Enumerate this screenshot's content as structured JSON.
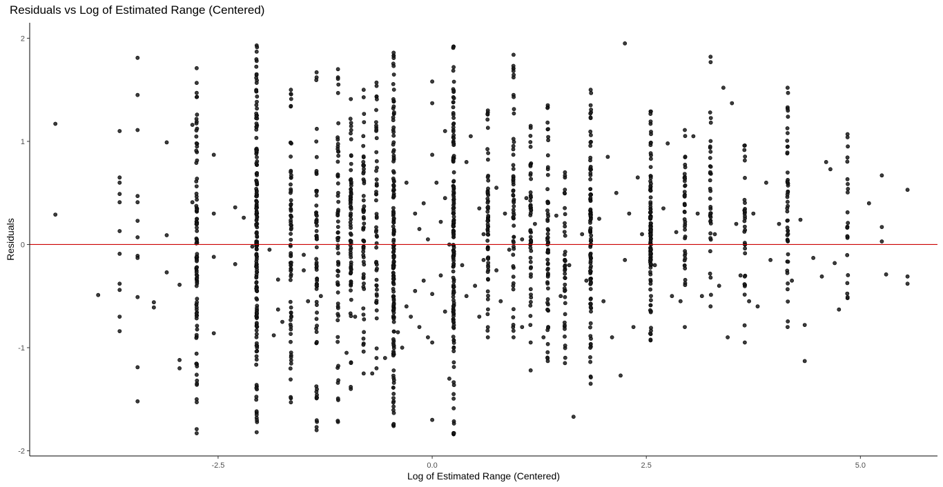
{
  "chart_data": {
    "type": "scatter",
    "title": "Residuals vs Log of Estimated Range (Centered)",
    "xlabel": "Log of Estimated Range (Centered)",
    "ylabel": "Residuals",
    "xlim": [
      -4.7,
      5.9
    ],
    "ylim": [
      -2.05,
      2.15
    ],
    "x_ticks": [
      -2.5,
      0.0,
      2.5,
      5.0
    ],
    "x_tick_labels": [
      "-2.5",
      "0.0",
      "2.5",
      "5.0"
    ],
    "y_ticks": [
      -2,
      -1,
      0,
      1,
      2
    ],
    "y_tick_labels": [
      "-2",
      "-1",
      "0",
      "1",
      "2"
    ],
    "grid": false,
    "legend": "none",
    "reference_line": {
      "y": 0,
      "color": "#cc0000"
    },
    "point_color": "#1a1a1a",
    "series": [
      {
        "points": [
          [
            -4.4,
            1.17
          ],
          [
            -4.4,
            0.29
          ],
          [
            -3.9,
            -0.49
          ],
          [
            -3.65,
            1.1
          ],
          [
            -3.65,
            0.65
          ],
          [
            -3.65,
            0.6
          ],
          [
            -3.65,
            0.49
          ],
          [
            -3.65,
            0.41
          ],
          [
            -3.65,
            0.13
          ],
          [
            -3.65,
            -0.09
          ],
          [
            -3.65,
            -0.38
          ],
          [
            -3.65,
            -0.44
          ],
          [
            -3.65,
            -0.7
          ],
          [
            -3.65,
            -0.84
          ],
          [
            -3.44,
            1.81
          ],
          [
            -3.44,
            1.45
          ],
          [
            -3.44,
            1.11
          ],
          [
            -3.44,
            0.47
          ],
          [
            -3.44,
            0.41
          ],
          [
            -3.44,
            0.23
          ],
          [
            -3.44,
            0.07
          ],
          [
            -3.44,
            -0.11
          ],
          [
            -3.44,
            -0.13
          ],
          [
            -3.44,
            -0.51
          ],
          [
            -3.44,
            -1.19
          ],
          [
            -3.44,
            -1.52
          ],
          [
            -3.25,
            -0.56
          ],
          [
            -3.25,
            -0.61
          ],
          [
            -3.1,
            0.99
          ],
          [
            -3.1,
            0.09
          ],
          [
            -3.1,
            -0.27
          ],
          [
            -2.95,
            -0.39
          ],
          [
            -2.95,
            -1.12
          ],
          [
            -2.95,
            -1.2
          ],
          [
            -2.8,
            1.16
          ],
          [
            -2.8,
            0.41
          ],
          [
            -2.75,
            -0.34
          ],
          [
            -2.75,
            -0.63
          ],
          [
            -2.55,
            0.87
          ],
          [
            -2.55,
            0.3
          ],
          [
            -2.55,
            -0.12
          ],
          [
            -2.55,
            -0.86
          ],
          [
            -2.3,
            0.36
          ],
          [
            -2.3,
            -0.19
          ],
          [
            -2.2,
            0.26
          ],
          [
            -2.1,
            -0.02
          ],
          [
            -1.9,
            -0.05
          ],
          [
            -1.85,
            -0.88
          ],
          [
            -1.8,
            -0.34
          ],
          [
            -1.8,
            -0.63
          ],
          [
            -1.75,
            -0.75
          ],
          [
            -1.5,
            -0.1
          ],
          [
            -1.5,
            -0.25
          ],
          [
            -1.45,
            -0.55
          ],
          [
            -1.35,
            -0.43
          ],
          [
            -1.3,
            -0.5
          ],
          [
            -1.1,
            -0.6
          ],
          [
            -1.0,
            -1.05
          ],
          [
            -0.9,
            -0.7
          ],
          [
            -0.8,
            -0.96
          ],
          [
            -0.7,
            -1.25
          ],
          [
            -0.65,
            -1.2
          ],
          [
            -0.55,
            -1.1
          ],
          [
            -0.4,
            -0.85
          ],
          [
            -0.35,
            -1.0
          ],
          [
            -0.3,
            -0.6
          ],
          [
            -0.3,
            0.6
          ],
          [
            -0.25,
            -0.7
          ],
          [
            -0.2,
            -0.45
          ],
          [
            -0.2,
            0.3
          ],
          [
            -0.15,
            -0.8
          ],
          [
            -0.15,
            0.15
          ],
          [
            -0.1,
            -0.35
          ],
          [
            -0.1,
            0.4
          ],
          [
            -0.05,
            -0.9
          ],
          [
            -0.05,
            0.05
          ],
          [
            0.0,
            1.58
          ],
          [
            0.0,
            1.37
          ],
          [
            0.0,
            0.87
          ],
          [
            0.0,
            -0.48
          ],
          [
            0.0,
            -0.95
          ],
          [
            0.0,
            -1.7
          ],
          [
            0.05,
            0.6
          ],
          [
            0.1,
            -0.3
          ],
          [
            0.1,
            0.22
          ],
          [
            0.15,
            -0.65
          ],
          [
            0.15,
            0.45
          ],
          [
            0.15,
            1.1
          ],
          [
            0.2,
            -1.3
          ],
          [
            0.2,
            0.0
          ],
          [
            0.35,
            -0.2
          ],
          [
            0.4,
            0.8
          ],
          [
            0.4,
            -0.5
          ],
          [
            0.45,
            1.05
          ],
          [
            0.5,
            -0.4
          ],
          [
            0.55,
            0.35
          ],
          [
            0.55,
            -0.7
          ],
          [
            0.6,
            0.1
          ],
          [
            0.6,
            -0.15
          ],
          [
            0.75,
            -0.25
          ],
          [
            0.75,
            0.55
          ],
          [
            0.8,
            -0.55
          ],
          [
            0.85,
            0.3
          ],
          [
            0.9,
            -0.05
          ],
          [
            1.05,
            -0.8
          ],
          [
            1.05,
            0.05
          ],
          [
            1.1,
            0.45
          ],
          [
            1.15,
            -1.22
          ],
          [
            1.2,
            0.2
          ],
          [
            1.3,
            -0.9
          ],
          [
            1.45,
            0.28
          ],
          [
            1.5,
            -0.5
          ],
          [
            1.55,
            0.65
          ],
          [
            1.6,
            -0.2
          ],
          [
            1.65,
            -1.67
          ],
          [
            1.75,
            0.1
          ],
          [
            1.8,
            -0.35
          ],
          [
            1.95,
            0.25
          ],
          [
            2.0,
            -0.55
          ],
          [
            2.05,
            0.85
          ],
          [
            2.1,
            -0.9
          ],
          [
            2.15,
            0.5
          ],
          [
            2.2,
            -1.27
          ],
          [
            2.25,
            1.95
          ],
          [
            2.25,
            -0.15
          ],
          [
            2.3,
            0.3
          ],
          [
            2.35,
            -0.8
          ],
          [
            2.4,
            0.65
          ],
          [
            2.45,
            0.1
          ],
          [
            2.6,
            -0.2
          ],
          [
            2.7,
            0.35
          ],
          [
            2.75,
            0.98
          ],
          [
            2.8,
            -0.5
          ],
          [
            2.85,
            0.12
          ],
          [
            2.9,
            -0.55
          ],
          [
            3.05,
            1.05
          ],
          [
            3.1,
            0.3
          ],
          [
            3.15,
            -0.5
          ],
          [
            3.3,
            0.1
          ],
          [
            3.35,
            -0.4
          ],
          [
            3.4,
            1.52
          ],
          [
            3.45,
            -0.9
          ],
          [
            3.5,
            1.37
          ],
          [
            3.55,
            0.2
          ],
          [
            3.6,
            -0.3
          ],
          [
            3.7,
            -0.55
          ],
          [
            3.75,
            0.3
          ],
          [
            3.8,
            -0.6
          ],
          [
            3.9,
            0.6
          ],
          [
            3.95,
            -0.15
          ],
          [
            4.05,
            0.2
          ],
          [
            4.2,
            -0.35
          ],
          [
            4.3,
            0.24
          ],
          [
            4.35,
            -0.78
          ],
          [
            4.35,
            -1.13
          ],
          [
            4.45,
            -0.13
          ],
          [
            4.55,
            -0.31
          ],
          [
            4.6,
            0.8
          ],
          [
            4.65,
            0.73
          ],
          [
            4.7,
            -0.18
          ],
          [
            4.75,
            -0.63
          ],
          [
            5.1,
            0.4
          ],
          [
            5.25,
            0.67
          ],
          [
            5.25,
            0.17
          ],
          [
            5.25,
            0.03
          ],
          [
            5.3,
            -0.29
          ],
          [
            5.55,
            0.53
          ],
          [
            5.55,
            -0.31
          ],
          [
            5.55,
            -0.38
          ]
        ]
      }
    ],
    "dense_columns": [
      {
        "x": -2.75,
        "y_min": -1.83,
        "y_max": 1.71,
        "n": 90,
        "values": [
          1.71,
          1.47,
          1.43,
          -1.79,
          -1.83,
          -1.5
        ]
      },
      {
        "x": -2.05,
        "y_min": -1.82,
        "y_max": 1.93,
        "n": 170,
        "values": [
          1.93,
          1.87,
          1.78,
          -1.82,
          -1.68,
          -1.63
        ]
      },
      {
        "x": -1.65,
        "y_min": -1.53,
        "y_max": 1.5,
        "n": 70,
        "values": [
          1.5,
          1.46,
          -1.53,
          -1.49
        ]
      },
      {
        "x": -1.35,
        "y_min": -1.8,
        "y_max": 1.67,
        "n": 60,
        "values": [
          1.67,
          1.62,
          -1.8,
          -1.77
        ]
      },
      {
        "x": -1.1,
        "y_min": -1.72,
        "y_max": 1.7,
        "n": 60,
        "values": [
          1.7,
          1.62,
          -1.72
        ]
      },
      {
        "x": -0.95,
        "y_min": -1.4,
        "y_max": 1.41,
        "n": 70,
        "values": [
          1.41,
          -1.4
        ]
      },
      {
        "x": -0.8,
        "y_min": -1.25,
        "y_max": 1.5,
        "n": 55,
        "values": [
          1.5,
          -1.25
        ]
      },
      {
        "x": -0.65,
        "y_min": -1.1,
        "y_max": 1.57,
        "n": 50,
        "values": [
          1.57,
          -1.1
        ]
      },
      {
        "x": -0.45,
        "y_min": -1.76,
        "y_max": 1.86,
        "n": 150,
        "values": [
          1.86,
          1.83,
          -1.76,
          -1.52
        ]
      },
      {
        "x": 0.25,
        "y_min": -1.84,
        "y_max": 1.92,
        "n": 150,
        "values": [
          1.92,
          1.72,
          -1.84,
          -1.45
        ]
      },
      {
        "x": 0.65,
        "y_min": -0.9,
        "y_max": 1.3,
        "n": 60,
        "values": [
          1.3,
          1.28,
          -0.9
        ]
      },
      {
        "x": 0.95,
        "y_min": -0.9,
        "y_max": 1.84,
        "n": 55,
        "values": [
          1.84,
          1.62,
          1.45,
          -0.9
        ]
      },
      {
        "x": 1.15,
        "y_min": -0.95,
        "y_max": 1.15,
        "n": 50,
        "values": [
          1.15,
          -0.95
        ]
      },
      {
        "x": 1.35,
        "y_min": -1.13,
        "y_max": 1.35,
        "n": 60,
        "values": [
          1.35,
          1.33,
          -1.13
        ]
      },
      {
        "x": 1.55,
        "y_min": -1.15,
        "y_max": 0.7,
        "n": 40,
        "values": [
          0.7,
          -1.15
        ]
      },
      {
        "x": 1.85,
        "y_min": -1.35,
        "y_max": 1.5,
        "n": 100,
        "values": [
          1.5,
          1.35,
          -1.35,
          -1.28
        ]
      },
      {
        "x": 2.55,
        "y_min": -0.93,
        "y_max": 1.29,
        "n": 110,
        "values": [
          1.29,
          1.17,
          -0.93
        ]
      },
      {
        "x": 2.95,
        "y_min": -0.8,
        "y_max": 1.11,
        "n": 40,
        "values": [
          1.11,
          -0.8
        ]
      },
      {
        "x": 3.25,
        "y_min": -0.6,
        "y_max": 1.82,
        "n": 35,
        "values": [
          1.82,
          -0.6
        ]
      },
      {
        "x": 3.65,
        "y_min": -0.95,
        "y_max": 0.96,
        "n": 30,
        "values": [
          0.96,
          -0.95
        ]
      },
      {
        "x": 4.15,
        "y_min": -0.8,
        "y_max": 1.52,
        "n": 45,
        "values": [
          1.52,
          1.33,
          1.08,
          -0.8
        ]
      },
      {
        "x": 4.85,
        "y_min": -0.52,
        "y_max": 1.07,
        "n": 20,
        "values": [
          1.07,
          1.04,
          -0.52
        ]
      }
    ]
  }
}
